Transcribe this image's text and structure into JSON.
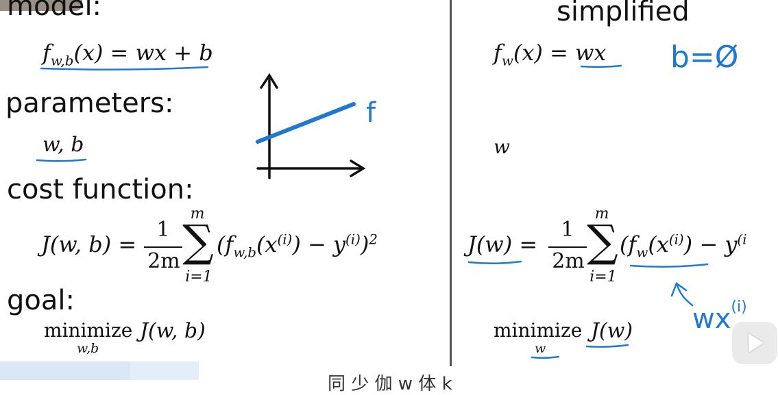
{
  "left": {
    "model_heading": "model:",
    "model_eq": {
      "f": "f",
      "sub": "w,b",
      "rest": "(x) = wx + b"
    },
    "parameters_heading": "parameters:",
    "parameters": "w, b",
    "cost_heading": "cost function:",
    "cost": {
      "lhs": "J(w, b) =",
      "num": "1",
      "den": "2m",
      "sum": "∑",
      "sum_top": "m",
      "sum_bottom": "i=1",
      "open": "(f",
      "f_sub": "w,b",
      "x_part": "(x",
      "sup_i": "(i)",
      "close_mid": ")  −  y",
      "close_end": ")",
      "pow": "2"
    },
    "goal_heading": "goal:",
    "goal": {
      "min": "minimize",
      "under": "w,b",
      "expr": "J(w, b)"
    }
  },
  "right": {
    "heading": "simplified",
    "model_eq": {
      "f": "f",
      "sub": "w",
      "rest": "(x) = wx"
    },
    "b_note": "b=Ø",
    "parameter": "w",
    "cost": {
      "lhs": "J(w) =",
      "num": "1",
      "den": "2m",
      "sum": "∑",
      "sum_top": "m",
      "sum_bottom": "i=1",
      "open": "(f",
      "f_sub": "w",
      "x_part": "(x",
      "sup_i": "(i)",
      "close_mid": ")  −  y",
      "sup_end": "(i"
    },
    "wx_note": "wx",
    "wx_sup": "(i)",
    "goal": {
      "min": "minimize",
      "under": "w",
      "expr": "J(w)"
    }
  },
  "graph_label": "f",
  "caption": "同 少 伽 w 体 k",
  "colors": {
    "ink": "#1f78d1",
    "text": "#111111"
  }
}
